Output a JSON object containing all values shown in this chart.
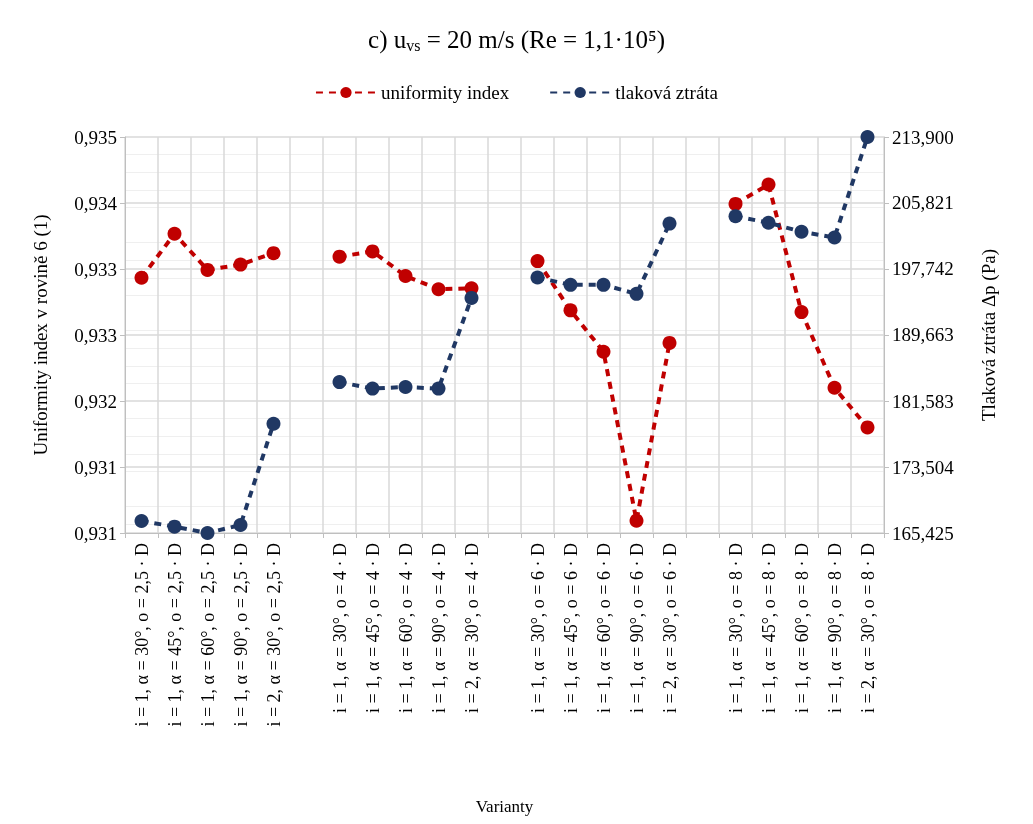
{
  "chart_data": {
    "type": "line",
    "title": "c) u$_{vs}$ = 20 m/s (Re = 1,1·10⁵)",
    "xlabel": "Varianty",
    "ylabel": "Uniformity index v rovině 6 (1)",
    "y2label": "Tlaková ztráta Δp (Pa)",
    "categories": [
      "i = 1, α = 30°, o = 2,5 · D",
      "i = 1, α = 45°, o = 2,5 · D",
      "i = 1, α = 60°, o = 2,5 · D",
      "i = 1, α = 90°, o = 2,5 · D",
      "i = 2, α = 30°, o = 2,5 · D",
      null,
      "i = 1, α = 30°, o = 4 · D",
      "i = 1, α = 45°, o = 4 · D",
      "i = 1, α = 60°, o = 4 · D",
      "i = 1, α = 90°, o = 4 · D",
      "i = 2, α = 30°, o = 4 · D",
      null,
      "i = 1, α = 30°, o = 6 · D",
      "i = 1, α = 45°, o = 6 · D",
      "i = 1, α = 60°, o = 6 · D",
      "i = 1, α = 90°, o = 6 · D",
      "i = 2, α = 30°, o = 6 · D",
      null,
      "i = 1, α = 30°, o = 8 · D",
      "i = 1, α = 45°, o = 8 · D",
      "i = 1, α = 60°, o = 8 · D",
      "i = 1, α = 90°, o = 8 · D",
      "i = 2, α = 30°, o = 8 · D"
    ],
    "series": [
      {
        "name": "uniformity index",
        "color": "#c00000",
        "values": [
          0.9334,
          0.9339,
          0.93349,
          0.93355,
          0.93368,
          null,
          0.93364,
          0.9337,
          0.93342,
          0.93327,
          0.93328,
          null,
          0.93359,
          0.93303,
          0.93256,
          0.93064,
          0.93266,
          null,
          0.93424,
          0.93446,
          0.93301,
          0.93215,
          0.9317
        ]
      },
      {
        "name": "tlaková ztráta",
        "color": "#203864",
        "axis": "y2",
        "values": [
          166.9,
          166.2,
          165.43,
          166.4,
          178.8,
          null,
          183.9,
          183.1,
          183.3,
          183.1,
          194.2,
          null,
          196.7,
          195.8,
          195.8,
          194.7,
          203.3,
          null,
          204.2,
          203.4,
          202.3,
          201.6,
          213.9
        ]
      }
    ],
    "ylim": [
      0.9305,
      0.935
    ],
    "yticks": [
      {
        "value": 0.9305,
        "label": "0,931"
      },
      {
        "value": 0.93125,
        "label": "0,931"
      },
      {
        "value": 0.932,
        "label": "0,932"
      },
      {
        "value": 0.93275,
        "label": "0,933"
      },
      {
        "value": 0.9335,
        "label": "0,933"
      },
      {
        "value": 0.93425,
        "label": "0,934"
      },
      {
        "value": 0.935,
        "label": "0,935"
      }
    ],
    "y2lim": [
      165.425,
      213.9
    ],
    "y2ticks": [
      {
        "value": 165.425,
        "label": "165,425"
      },
      {
        "value": 173.504,
        "label": "173,504"
      },
      {
        "value": 181.583,
        "label": "181,583"
      },
      {
        "value": 189.663,
        "label": "189,663"
      },
      {
        "value": 197.742,
        "label": "197,742"
      },
      {
        "value": 205.821,
        "label": "205,821"
      },
      {
        "value": 213.9,
        "label": "213,900"
      }
    ],
    "grid": true,
    "legend": "top",
    "marker": "circle",
    "line_style": "dashed"
  }
}
